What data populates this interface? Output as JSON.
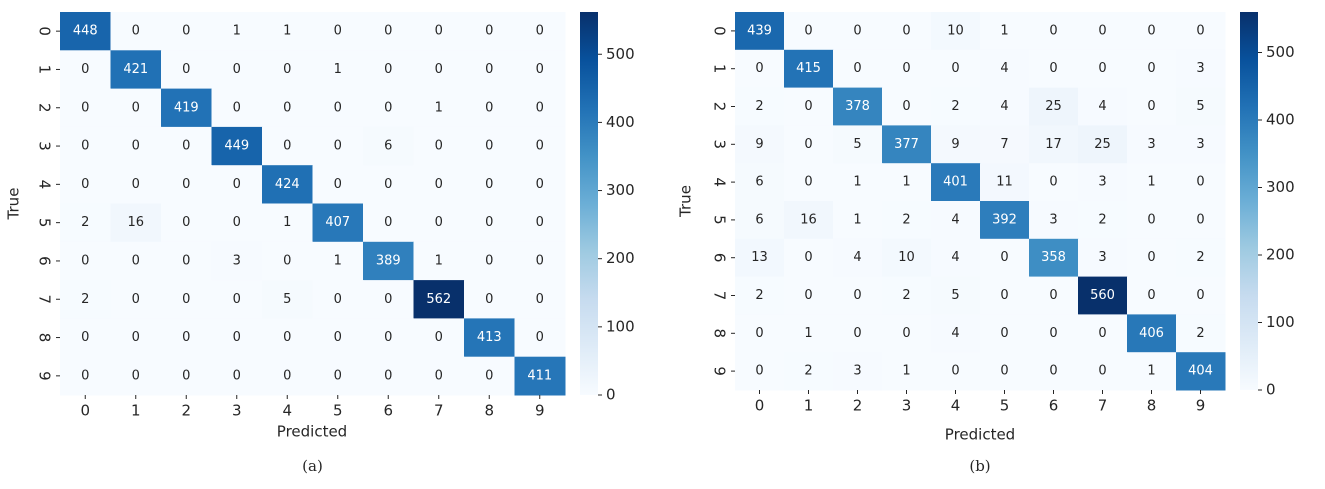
{
  "chart_data": [
    {
      "type": "heatmap",
      "caption": "(a)",
      "x_label": "Predicted",
      "y_label": "True",
      "x_categories": [
        "0",
        "1",
        "2",
        "3",
        "4",
        "5",
        "6",
        "7",
        "8",
        "9"
      ],
      "y_categories": [
        "0",
        "1",
        "2",
        "3",
        "4",
        "5",
        "6",
        "7",
        "8",
        "9"
      ],
      "values": [
        [
          448,
          0,
          0,
          1,
          1,
          0,
          0,
          0,
          0,
          0
        ],
        [
          0,
          421,
          0,
          0,
          0,
          1,
          0,
          0,
          0,
          0
        ],
        [
          0,
          0,
          419,
          0,
          0,
          0,
          0,
          1,
          0,
          0
        ],
        [
          0,
          0,
          0,
          449,
          0,
          0,
          6,
          0,
          0,
          0
        ],
        [
          0,
          0,
          0,
          0,
          424,
          0,
          0,
          0,
          0,
          0
        ],
        [
          2,
          16,
          0,
          0,
          1,
          407,
          0,
          0,
          0,
          0
        ],
        [
          0,
          0,
          0,
          3,
          0,
          1,
          389,
          1,
          0,
          0
        ],
        [
          2,
          0,
          0,
          0,
          5,
          0,
          0,
          562,
          0,
          0
        ],
        [
          0,
          0,
          0,
          0,
          0,
          0,
          0,
          0,
          413,
          0
        ],
        [
          0,
          0,
          0,
          0,
          0,
          0,
          0,
          0,
          0,
          411
        ]
      ],
      "clim": [
        0,
        562
      ],
      "cticks": [
        0,
        100,
        200,
        300,
        400,
        500
      ],
      "colormap": [
        "#f7fbff",
        "#deebf7",
        "#c6dbef",
        "#9ecae1",
        "#6baed6",
        "#4292c6",
        "#2171b5",
        "#08519c",
        "#08306b"
      ]
    },
    {
      "type": "heatmap",
      "caption": "(b)",
      "x_label": "Predicted",
      "y_label": "True",
      "x_categories": [
        "0",
        "1",
        "2",
        "3",
        "4",
        "5",
        "6",
        "7",
        "8",
        "9"
      ],
      "y_categories": [
        "0",
        "1",
        "2",
        "3",
        "4",
        "5",
        "6",
        "7",
        "8",
        "9"
      ],
      "values": [
        [
          439,
          0,
          0,
          0,
          10,
          1,
          0,
          0,
          0,
          0
        ],
        [
          0,
          415,
          0,
          0,
          0,
          4,
          0,
          0,
          0,
          3
        ],
        [
          2,
          0,
          378,
          0,
          2,
          4,
          25,
          4,
          0,
          5
        ],
        [
          9,
          0,
          5,
          377,
          9,
          7,
          17,
          25,
          3,
          3
        ],
        [
          6,
          0,
          1,
          1,
          401,
          11,
          0,
          3,
          1,
          0
        ],
        [
          6,
          16,
          1,
          2,
          4,
          392,
          3,
          2,
          0,
          0
        ],
        [
          13,
          0,
          4,
          10,
          4,
          0,
          358,
          3,
          0,
          2
        ],
        [
          2,
          0,
          0,
          2,
          5,
          0,
          0,
          560,
          0,
          0
        ],
        [
          0,
          1,
          0,
          0,
          4,
          0,
          0,
          0,
          406,
          2
        ],
        [
          0,
          2,
          3,
          1,
          0,
          0,
          0,
          0,
          1,
          404
        ]
      ],
      "clim": [
        0,
        560
      ],
      "cticks": [
        0,
        100,
        200,
        300,
        400,
        500
      ],
      "colormap": [
        "#f7fbff",
        "#deebf7",
        "#c6dbef",
        "#9ecae1",
        "#6baed6",
        "#4292c6",
        "#2171b5",
        "#08519c",
        "#08306b"
      ]
    }
  ]
}
